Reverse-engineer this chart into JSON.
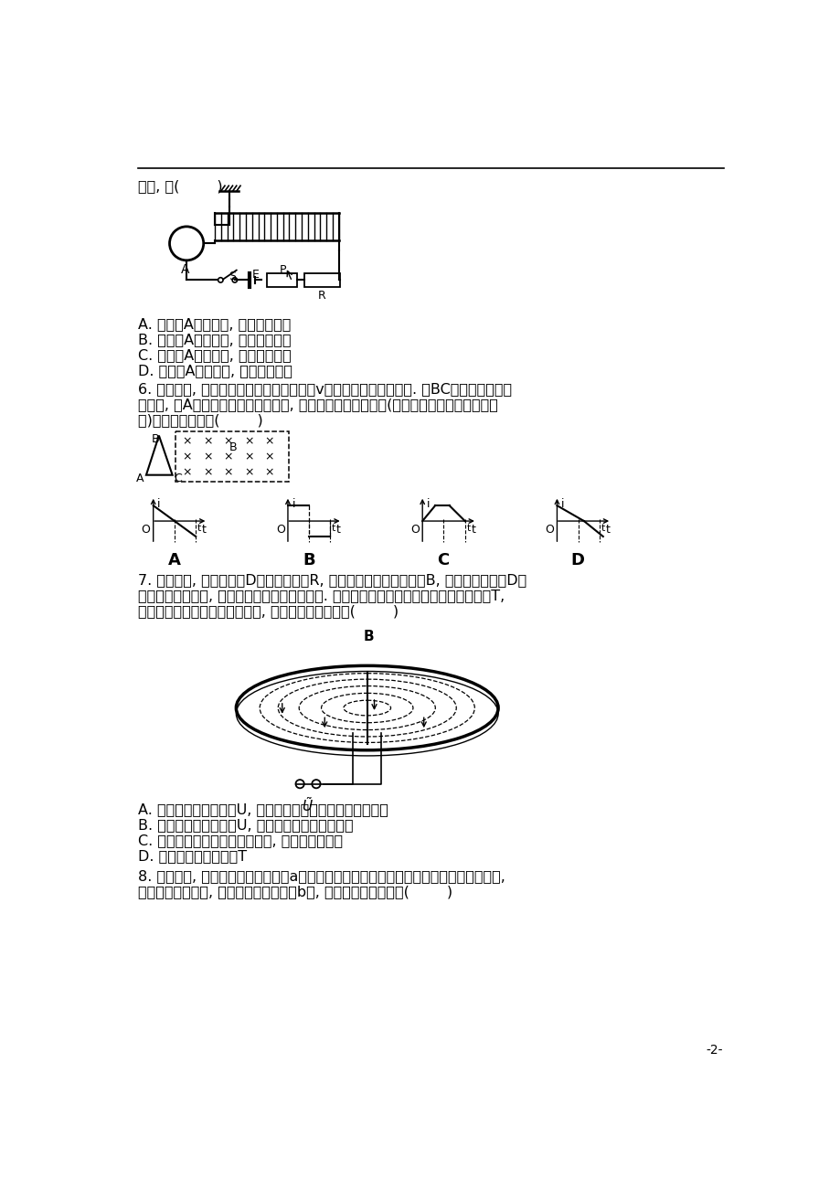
{
  "background_color": "#ffffff",
  "page_number": "-2-",
  "line1": "移动, 则(        )",
  "opts5": [
    "A. 金属环A向左运动, 同时向外扩张",
    "B. 金属环A向左运动, 同时向里收缩",
    "C. 金属环A向右运动, 同时向外扩张",
    "D. 金属环A向右运动, 同时向里收缩"
  ],
  "q6_lines": [
    "6. 如图所示, 一闭合直角三角形线框以速度v匀速穿过匀强磁场区域. 从BC边进入磁场区开",
    "始计时, 到A点离开磁场区止的过程中, 线框内感应电流的情况(以逆时针方向为电流的正方",
    "向)是如图所示中的(        )"
  ],
  "q7_lines": [
    "7. 如图所示, 回旋加速器D形盒的半径为R, 所加磁场的磁感应强度为B, 被加速的质子从D形",
    "盒中央由静止出发, 经交变电场加速后进入磁场. 设质子在磁场中做匀速圆周运动的周期为T,",
    "若忽略质子在电场中的加速时间, 则下列说法正确的是(        )"
  ],
  "opts7": [
    "A. 如果只增大交变电压U, 则质子在加速器中运行时间将变短",
    "B. 如果只增大交变电压U, 则电荷的最大动能会变大",
    "C. 质子在电场中加速的次数越多, 其最大动能越大",
    "D. 交变电流的周期应为T"
  ],
  "q8_lines": [
    "8. 如图所示, 一个带正电荷的小球从a点出发水平进入正交垂直的匀强电场和匀强磁场区域,",
    "电场方向竖直向上, 某时刻小球运动到了b点, 则下列说法正确的是(        )"
  ]
}
